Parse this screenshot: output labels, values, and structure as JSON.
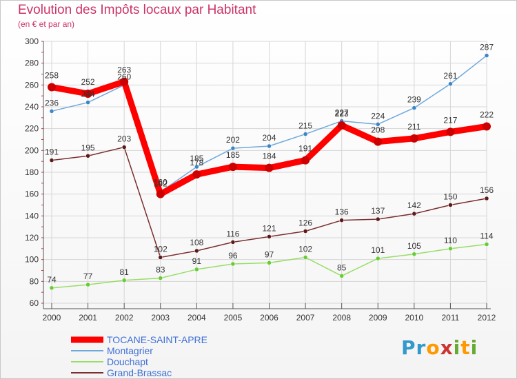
{
  "title": "Evolution des Impôts locaux par Habitant",
  "subtitle": "(en € et par an)",
  "colors": {
    "title": "#cc3366",
    "grid": "#d6d6d6",
    "axis": "#555555"
  },
  "logo": {
    "text": "Proxiti",
    "letters": [
      "P",
      "r",
      "o",
      "x",
      "i",
      "t",
      "i"
    ],
    "colors": [
      "#3399cc",
      "#3399cc",
      "#ff9900",
      "#cc3333",
      "#66aa33",
      "#ff9900",
      "#66aa33"
    ]
  },
  "chart_data": {
    "type": "line",
    "title": "Evolution des Impôts locaux par Habitant",
    "ylabel": "(en € et par an)",
    "xlabel": "",
    "ylim": [
      60,
      300
    ],
    "yticks": [
      60,
      80,
      100,
      120,
      140,
      160,
      180,
      200,
      220,
      240,
      260,
      280,
      300
    ],
    "grid": true,
    "categories": [
      "2000",
      "2001",
      "2002",
      "2003",
      "2004",
      "2005",
      "2006",
      "2007",
      "2008",
      "2009",
      "2010",
      "2011",
      "2012"
    ],
    "series": [
      {
        "name": "TOCANE-SAINT-APRE",
        "color": "#ff0000",
        "marker": "#cc0000",
        "style": "thick",
        "values": [
          258,
          252,
          263,
          160,
          178,
          185,
          184,
          191,
          223,
          208,
          211,
          217,
          222
        ]
      },
      {
        "name": "Montagrier",
        "color": "#6fa8dc",
        "marker": "#3d85c6",
        "style": "thin",
        "values": [
          236,
          244,
          260,
          162,
          185,
          202,
          204,
          215,
          227,
          224,
          239,
          261,
          287
        ]
      },
      {
        "name": "Douchapt",
        "color": "#99dd66",
        "marker": "#66cc33",
        "style": "thin",
        "values": [
          74,
          77,
          81,
          83,
          91,
          96,
          97,
          102,
          85,
          101,
          105,
          110,
          114
        ]
      },
      {
        "name": "Grand-Brassac",
        "color": "#7a2e2e",
        "marker": "#5c1a1a",
        "style": "thin",
        "values": [
          191,
          195,
          203,
          102,
          108,
          116,
          121,
          126,
          136,
          137,
          142,
          150,
          156
        ]
      }
    ],
    "legend_position": "bottom-left"
  }
}
